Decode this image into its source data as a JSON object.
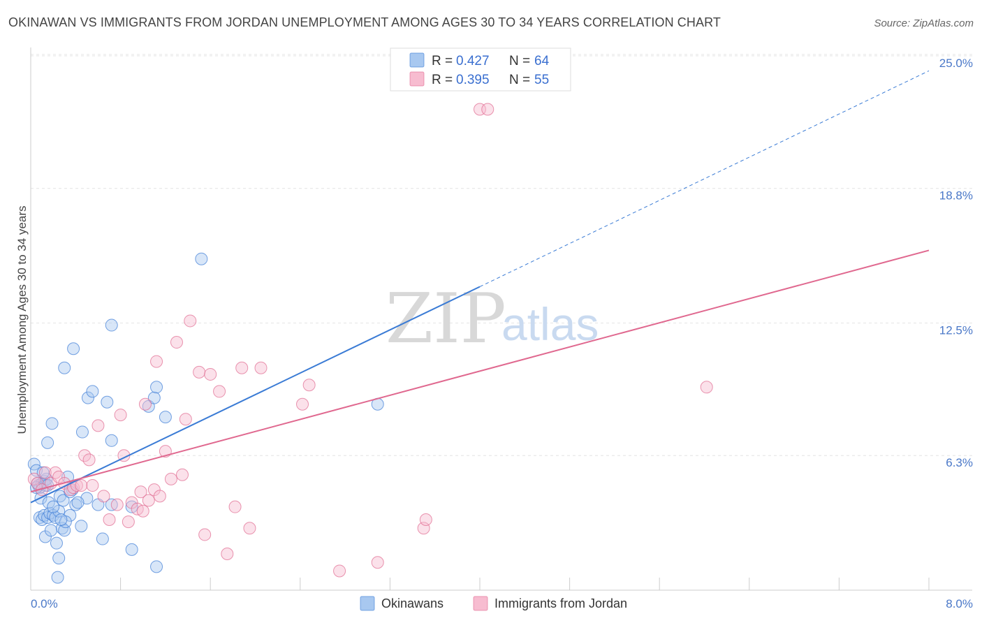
{
  "title": "OKINAWAN VS IMMIGRANTS FROM JORDAN UNEMPLOYMENT AMONG AGES 30 TO 34 YEARS CORRELATION CHART",
  "source": "Source: ZipAtlas.com",
  "watermark": {
    "zip": "ZIP",
    "atlas": "atlas"
  },
  "legend_box": {
    "rows": [
      {
        "r_label": "R =",
        "r_value": "0.427",
        "n_label": "N =",
        "n_value": "64",
        "color": "#8fb5ea"
      },
      {
        "r_label": "R =",
        "r_value": "0.395",
        "n_label": "N =",
        "n_value": "55",
        "color": "#f3a9c2"
      }
    ]
  },
  "bottom_legend": [
    {
      "label": "Okinawans",
      "color": "#8fb5ea"
    },
    {
      "label": "Immigrants from Jordan",
      "color": "#f3a9c2"
    }
  ],
  "chart_data": {
    "type": "scatter",
    "ylabel": "Unemployment Among Ages 30 to 34 years",
    "xlabel": "",
    "xlim": [
      0,
      8
    ],
    "ylim": [
      0,
      25
    ],
    "x_tick_labels": [
      "0.0%",
      "8.0%"
    ],
    "y_ticks": [
      6.3,
      12.5,
      18.8,
      25.0
    ],
    "y_tick_labels": [
      "6.3%",
      "12.5%",
      "18.8%",
      "25.0%"
    ],
    "grid": true,
    "series": [
      {
        "name": "Okinawans",
        "color": "#3a7bd5",
        "fill": "#a8c8f0",
        "trend": {
          "x0": 0.0,
          "y0": 4.1,
          "x1": 4.0,
          "y1": 14.2,
          "dash_to_x": 8.0,
          "dash_to_y": 24.3
        },
        "points": [
          [
            0.03,
            5.9
          ],
          [
            0.05,
            5.6
          ],
          [
            0.06,
            5.0
          ],
          [
            0.07,
            4.9
          ],
          [
            0.08,
            4.8
          ],
          [
            0.1,
            5.0
          ],
          [
            0.12,
            5.1
          ],
          [
            0.13,
            4.9
          ],
          [
            0.14,
            5.2
          ],
          [
            0.15,
            4.9
          ],
          [
            0.08,
            3.4
          ],
          [
            0.1,
            3.3
          ],
          [
            0.12,
            3.5
          ],
          [
            0.15,
            3.4
          ],
          [
            0.17,
            3.6
          ],
          [
            0.2,
            3.5
          ],
          [
            0.22,
            3.4
          ],
          [
            0.25,
            3.7
          ],
          [
            0.13,
            2.5
          ],
          [
            0.18,
            2.8
          ],
          [
            0.23,
            2.2
          ],
          [
            0.25,
            1.5
          ],
          [
            0.28,
            2.9
          ],
          [
            0.3,
            2.8
          ],
          [
            0.35,
            3.5
          ],
          [
            0.4,
            4.0
          ],
          [
            0.45,
            3.0
          ],
          [
            0.5,
            4.3
          ],
          [
            0.33,
            5.3
          ],
          [
            0.37,
            4.7
          ],
          [
            0.15,
            6.9
          ],
          [
            0.19,
            7.8
          ],
          [
            0.3,
            10.4
          ],
          [
            0.38,
            11.3
          ],
          [
            0.46,
            7.4
          ],
          [
            0.51,
            9.0
          ],
          [
            0.55,
            9.3
          ],
          [
            0.64,
            2.4
          ],
          [
            0.68,
            8.8
          ],
          [
            0.72,
            7.0
          ],
          [
            0.72,
            4.0
          ],
          [
            0.9,
            3.9
          ],
          [
            0.9,
            1.9
          ],
          [
            1.05,
            8.6
          ],
          [
            1.1,
            9.0
          ],
          [
            1.12,
            1.1
          ],
          [
            1.2,
            8.1
          ],
          [
            1.52,
            15.5
          ],
          [
            0.72,
            12.4
          ],
          [
            3.09,
            8.7
          ],
          [
            0.05,
            4.8
          ],
          [
            0.09,
            4.3
          ],
          [
            0.16,
            4.1
          ],
          [
            0.2,
            3.9
          ],
          [
            0.26,
            4.4
          ],
          [
            0.29,
            4.2
          ],
          [
            0.31,
            3.2
          ],
          [
            0.35,
            4.6
          ],
          [
            0.42,
            4.1
          ],
          [
            0.24,
            0.6
          ],
          [
            1.12,
            9.5
          ],
          [
            0.6,
            4.0
          ],
          [
            0.27,
            3.3
          ],
          [
            0.11,
            5.5
          ]
        ]
      },
      {
        "name": "Immigrants from Jordan",
        "color": "#e0688f",
        "fill": "#f7bcd0",
        "trend": {
          "x0": 0.0,
          "y0": 4.6,
          "x1": 8.0,
          "y1": 15.9
        },
        "points": [
          [
            0.03,
            5.2
          ],
          [
            0.06,
            5.0
          ],
          [
            0.1,
            4.7
          ],
          [
            0.13,
            5.5
          ],
          [
            0.18,
            5.0
          ],
          [
            0.22,
            5.5
          ],
          [
            0.25,
            5.3
          ],
          [
            0.3,
            5.0
          ],
          [
            0.35,
            4.7
          ],
          [
            0.38,
            4.8
          ],
          [
            0.41,
            4.9
          ],
          [
            0.45,
            4.9
          ],
          [
            0.48,
            6.3
          ],
          [
            0.52,
            6.1
          ],
          [
            0.6,
            7.7
          ],
          [
            0.65,
            4.4
          ],
          [
            0.7,
            3.3
          ],
          [
            0.77,
            4.0
          ],
          [
            0.8,
            8.2
          ],
          [
            0.83,
            6.3
          ],
          [
            0.87,
            3.2
          ],
          [
            0.9,
            4.1
          ],
          [
            0.95,
            3.8
          ],
          [
            0.98,
            4.6
          ],
          [
            1.02,
            8.7
          ],
          [
            1.05,
            4.2
          ],
          [
            1.1,
            4.7
          ],
          [
            1.12,
            10.7
          ],
          [
            1.15,
            4.4
          ],
          [
            1.2,
            6.5
          ],
          [
            1.25,
            5.2
          ],
          [
            1.3,
            11.6
          ],
          [
            1.35,
            5.4
          ],
          [
            1.38,
            8.0
          ],
          [
            1.42,
            12.6
          ],
          [
            1.5,
            10.2
          ],
          [
            1.55,
            2.6
          ],
          [
            1.6,
            10.1
          ],
          [
            1.68,
            9.3
          ],
          [
            1.75,
            1.7
          ],
          [
            1.82,
            3.9
          ],
          [
            1.88,
            10.4
          ],
          [
            1.95,
            2.9
          ],
          [
            2.05,
            10.4
          ],
          [
            2.42,
            8.7
          ],
          [
            2.48,
            9.6
          ],
          [
            2.75,
            0.9
          ],
          [
            3.09,
            1.3
          ],
          [
            3.5,
            2.9
          ],
          [
            3.52,
            3.3
          ],
          [
            4.0,
            22.5
          ],
          [
            4.07,
            22.5
          ],
          [
            6.02,
            9.5
          ],
          [
            0.55,
            4.9
          ],
          [
            1.0,
            3.7
          ]
        ]
      }
    ]
  }
}
